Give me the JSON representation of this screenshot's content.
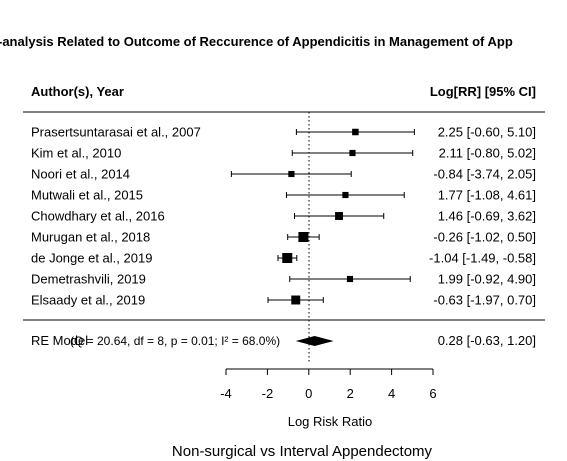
{
  "chart_data": {
    "type": "forest",
    "title": "-analysis Related to Outcome of Reccurence of Appendicitis in Management of App",
    "column_headers": {
      "study": "Author(s), Year",
      "effect": "Log[RR] [95% CI]"
    },
    "studies": [
      {
        "label": "Prasertsuntarasai et al., 2007",
        "est": 2.25,
        "lo": -0.6,
        "hi": 5.1,
        "weight": 0.5,
        "text": "2.25 [-0.60,  5.10]"
      },
      {
        "label": "Kim et al., 2010",
        "est": 2.11,
        "lo": -0.8,
        "hi": 5.02,
        "weight": 0.45,
        "text": "2.11 [-0.80,  5.02]"
      },
      {
        "label": "Noori et al., 2014",
        "est": -0.84,
        "lo": -3.74,
        "hi": 2.05,
        "weight": 0.45,
        "text": "-0.84 [-3.74,  2.05]"
      },
      {
        "label": "Mutwali et al., 2015",
        "est": 1.77,
        "lo": -1.08,
        "hi": 4.61,
        "weight": 0.45,
        "text": "1.77 [-1.08,  4.61]"
      },
      {
        "label": "Chowdhary et al., 2016",
        "est": 1.46,
        "lo": -0.69,
        "hi": 3.62,
        "weight": 0.7,
        "text": "1.46 [-0.69,  3.62]"
      },
      {
        "label": "Murugan et al., 2018",
        "est": -0.26,
        "lo": -1.02,
        "hi": 0.5,
        "weight": 1.0,
        "text": "-0.26 [-1.02,  0.50]"
      },
      {
        "label": "de Jonge et al., 2019",
        "est": -1.04,
        "lo": -1.49,
        "hi": -0.58,
        "weight": 1.0,
        "text": "-1.04 [-1.49, -0.58]"
      },
      {
        "label": "Demetrashvili, 2019",
        "est": 1.99,
        "lo": -0.92,
        "hi": 4.9,
        "weight": 0.45,
        "text": "1.99 [-0.92,  4.90]"
      },
      {
        "label": "Elsaady et al., 2019",
        "est": -0.63,
        "lo": -1.97,
        "hi": 0.7,
        "weight": 0.85,
        "text": "-0.63 [-1.97,  0.70]"
      }
    ],
    "summary": {
      "label": "RE Model",
      "heterogeneity": "(Q = 20.64, df = 8, p = 0.01; I² = 68.0%)",
      "est": 0.28,
      "lo": -0.63,
      "hi": 1.2,
      "text": "0.28 [-0.63,  1.20]"
    },
    "x_ticks": [
      -4,
      -2,
      0,
      2,
      4,
      6
    ],
    "xlim": [
      -4,
      6
    ],
    "reference_line": 0,
    "xlabel": "Log Risk Ratio",
    "caption": "Non-surgical vs Interval Appendectomy"
  }
}
